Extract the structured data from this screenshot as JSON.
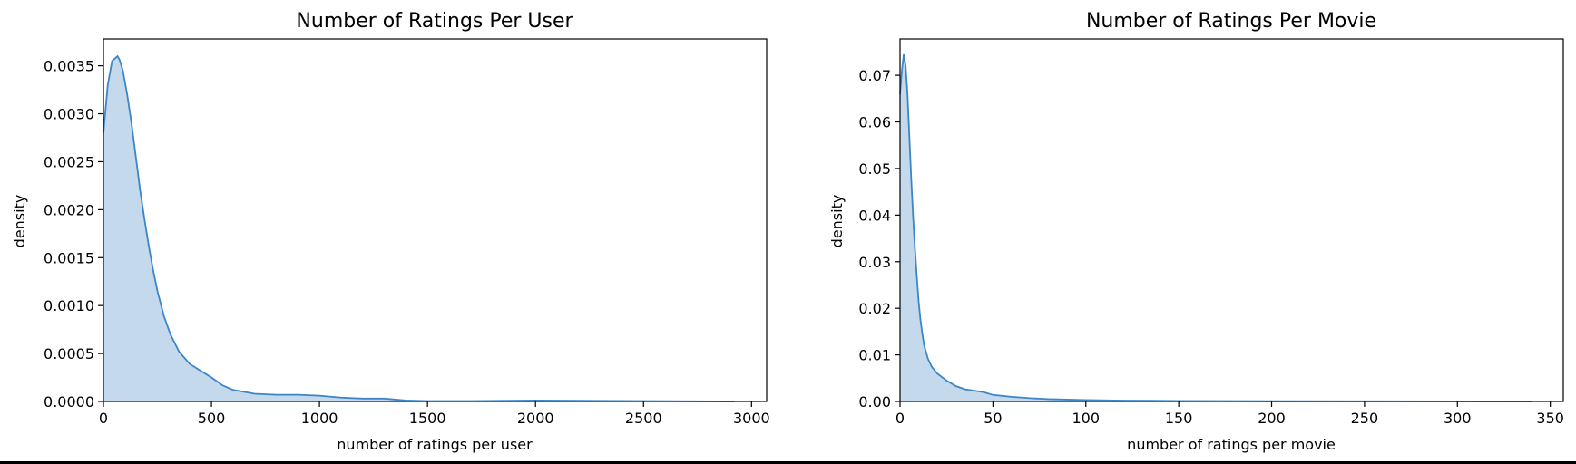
{
  "style": {
    "line_color": "#3a86c8",
    "fill_color": "#c5d9ec",
    "axis_color": "#000000"
  },
  "chart_data": [
    {
      "type": "area",
      "title": "Number of Ratings Per User",
      "xlabel": "number of ratings per user",
      "ylabel": "density",
      "xlim": [
        0,
        3070
      ],
      "ylim": [
        0,
        0.00378
      ],
      "grid": false,
      "xticks": [
        0,
        500,
        1000,
        1500,
        2000,
        2500,
        3000
      ],
      "xtick_labels": [
        "0",
        "500",
        "1000",
        "1500",
        "2000",
        "2500",
        "3000"
      ],
      "yticks": [
        0,
        0.0005,
        0.001,
        0.0015,
        0.002,
        0.0025,
        0.003,
        0.0035
      ],
      "ytick_labels": [
        "0.0000",
        "0.0005",
        "0.0010",
        "0.0015",
        "0.0020",
        "0.0025",
        "0.0030",
        "0.0035"
      ],
      "x": [
        0,
        20,
        40,
        55,
        65,
        75,
        90,
        110,
        130,
        150,
        170,
        190,
        210,
        230,
        250,
        280,
        310,
        350,
        400,
        450,
        500,
        550,
        600,
        700,
        800,
        900,
        1000,
        1100,
        1200,
        1300,
        1400,
        1500,
        1700,
        2000,
        2500,
        2920
      ],
      "y": [
        0.0028,
        0.0033,
        0.00355,
        0.00358,
        0.0036,
        0.00356,
        0.00345,
        0.0032,
        0.0029,
        0.00255,
        0.0022,
        0.0019,
        0.00162,
        0.00137,
        0.00115,
        0.00089,
        0.0007,
        0.00052,
        0.00039,
        0.00032,
        0.00025,
        0.00017,
        0.00012,
        8e-05,
        7e-05,
        7e-05,
        6e-05,
        4e-05,
        3e-05,
        3e-05,
        1e-05,
        5e-06,
        5e-06,
        1e-05,
        5e-06,
        0
      ]
    },
    {
      "type": "area",
      "title": "Number of Ratings Per Movie",
      "xlabel": "number of ratings per movie",
      "ylabel": "density",
      "xlim": [
        0,
        357
      ],
      "ylim": [
        0,
        0.0778
      ],
      "grid": false,
      "xticks": [
        0,
        50,
        100,
        150,
        200,
        250,
        300,
        350
      ],
      "xtick_labels": [
        "0",
        "50",
        "100",
        "150",
        "200",
        "250",
        "300",
        "350"
      ],
      "yticks": [
        0,
        0.01,
        0.02,
        0.03,
        0.04,
        0.05,
        0.06,
        0.07
      ],
      "ytick_labels": [
        "0.00",
        "0.01",
        "0.02",
        "0.03",
        "0.04",
        "0.05",
        "0.06",
        "0.07"
      ],
      "x": [
        0,
        1,
        2,
        3,
        4,
        5,
        6,
        7,
        8,
        9,
        10,
        11,
        12,
        13,
        15,
        17,
        20,
        25,
        30,
        35,
        40,
        45,
        50,
        55,
        60,
        70,
        80,
        100,
        120,
        150,
        200,
        250,
        300,
        340
      ],
      "y": [
        0.066,
        0.071,
        0.0745,
        0.072,
        0.066,
        0.057,
        0.048,
        0.04,
        0.033,
        0.027,
        0.0215,
        0.0175,
        0.0145,
        0.012,
        0.0092,
        0.0075,
        0.006,
        0.0045,
        0.0033,
        0.0026,
        0.0023,
        0.002,
        0.0014,
        0.0012,
        0.001,
        0.0007,
        0.0005,
        0.0003,
        0.0002,
        0.00012,
        6e-05,
        5e-05,
        3e-05,
        0
      ]
    }
  ]
}
